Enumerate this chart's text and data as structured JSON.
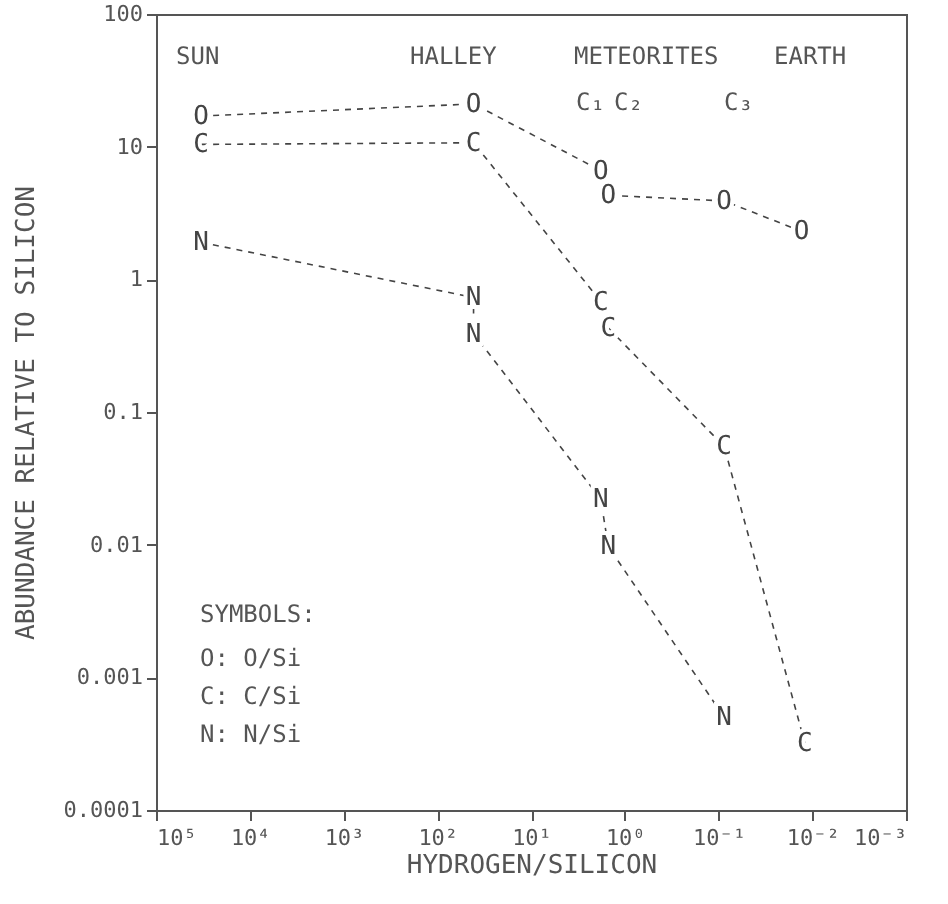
{
  "chart_data": {
    "type": "line",
    "xlabel": "HYDROGEN/SILICON",
    "ylabel": "ABUNDANCE RELATIVE TO SILICON",
    "log": "xy",
    "grid": false,
    "line_style": "dashed",
    "xlim": [
      100000,
      0.001
    ],
    "xticks": [
      {
        "value": 100000,
        "label": "10⁵"
      },
      {
        "value": 10000,
        "label": "10⁴"
      },
      {
        "value": 1000,
        "label": "10³"
      },
      {
        "value": 100,
        "label": "10²"
      },
      {
        "value": 10,
        "label": "10¹"
      },
      {
        "value": 1,
        "label": "10⁰"
      },
      {
        "value": 0.1,
        "label": "10⁻¹"
      },
      {
        "value": 0.01,
        "label": "10⁻²"
      },
      {
        "value": 0.001,
        "label": "10⁻³"
      }
    ],
    "ylim": [
      0.0001,
      100
    ],
    "yticks": [
      0.0001,
      0.001,
      0.01,
      0.1,
      1,
      10,
      100
    ],
    "series": [
      {
        "color": "#444444",
        "x": [
          33000,
          41,
          1.8,
          1.5,
          0.087,
          0.013
        ],
        "values": [
          17,
          21,
          6.6,
          4.3,
          3.9,
          2.3
        ],
        "value_labels": [
          "O",
          "O",
          "O",
          "O",
          "O",
          "O"
        ]
      },
      {
        "color": "#444444",
        "x": [
          33000,
          41,
          1.8,
          1.5,
          0.087,
          0.012
        ],
        "values": [
          10.4,
          10.7,
          0.68,
          0.43,
          0.055,
          0.00032
        ],
        "value_labels": [
          "C",
          "C",
          "C",
          "C",
          "C",
          "C"
        ]
      },
      {
        "color": "#444444",
        "x": [
          33000,
          41,
          41,
          1.8,
          1.5,
          0.087
        ],
        "values": [
          1.9,
          0.73,
          0.39,
          0.022,
          0.0097,
          0.0005
        ],
        "value_labels": [
          "N",
          "N",
          "N",
          "N",
          "N",
          "N"
        ]
      }
    ],
    "annotations": [
      "SUN",
      "HALLEY",
      "METEORITES",
      "EARTH",
      "C₁",
      "C₂",
      "C₃",
      "SYMBOLS:",
      "O:  O/Si",
      "C:  C/Si",
      "N:  N/Si"
    ]
  }
}
